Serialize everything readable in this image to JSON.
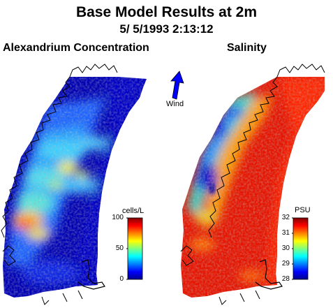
{
  "title": "Base Model Results at 2m",
  "timestamp": "5/ 5/1993  2:13:12",
  "panels": [
    {
      "title": "Alexandrium Concentration",
      "colorbar": {
        "unit": "cells/L",
        "min": 0,
        "max": 100,
        "ticks": [
          "100",
          "50",
          "0"
        ]
      }
    },
    {
      "title": "Salinity",
      "colorbar": {
        "unit": "PSU",
        "min": 28,
        "max": 32,
        "ticks": [
          "32",
          "31",
          "30",
          "29",
          "28"
        ]
      }
    }
  ],
  "wind": {
    "label": "Wind",
    "direction": "north-northeast"
  },
  "colors": {
    "colormap": "jet",
    "background": "#ffffff",
    "coast": "#000000"
  }
}
